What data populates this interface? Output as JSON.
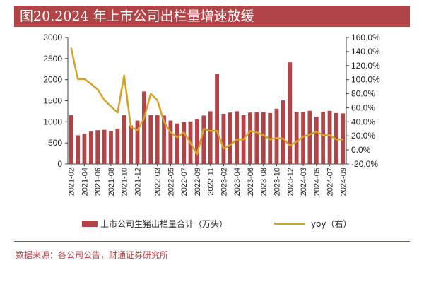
{
  "title": "图20.2024 年上市公司出栏量增速放缓",
  "source": "数据来源：各公司公告，财通证券研究所",
  "colors": {
    "bar": "#b04447",
    "line": "#d4a12a",
    "title_bg": "#b04447"
  },
  "chart_data": {
    "type": "bar",
    "categories": [
      "2021-02",
      "2021-03",
      "2021-04",
      "2021-05",
      "2021-06",
      "2021-07",
      "2021-08",
      "2021-09",
      "2021-10",
      "2021-11",
      "2021-12",
      "2022-01",
      "2022-02",
      "2022-03",
      "2022-04",
      "2022-05",
      "2022-06",
      "2022-07",
      "2022-08",
      "2022-09",
      "2022-10",
      "2022-11",
      "2022-12",
      "2023-02",
      "2023-03",
      "2023-04",
      "2023-05",
      "2023-06",
      "2023-07",
      "2023-08",
      "2023-09",
      "2023-10",
      "2023-11",
      "2023-12",
      "2024-02",
      "2024-03",
      "2024-04",
      "2024-05",
      "2024-06",
      "2024-07",
      "2024-08",
      "2024-09"
    ],
    "tick_labels": [
      "2021-02",
      "2021-04",
      "2021-06",
      "2021-08",
      "2021-10",
      "2021-12",
      "2022-03",
      "2022-05",
      "2022-07",
      "2022-09",
      "2022-11",
      "2023-02",
      "2023-04",
      "2023-06",
      "2023-08",
      "2023-10",
      "2023-12",
      "2024-03",
      "2024-05",
      "2024-07",
      "2024-09"
    ],
    "series": [
      {
        "name": "上市公司生猪出栏量合计（万头）",
        "axis": "left",
        "values": [
          1160,
          680,
          720,
          770,
          800,
          810,
          780,
          840,
          1160,
          910,
          1030,
          1720,
          1160,
          1160,
          1150,
          1030,
          960,
          990,
          1010,
          1060,
          1150,
          1250,
          2140,
          1190,
          1220,
          1250,
          1160,
          1220,
          1230,
          1230,
          1210,
          1310,
          1510,
          2410,
          1240,
          1230,
          1260,
          1120,
          1240,
          1260,
          1210,
          1200
        ]
      },
      {
        "name": "yoy（右）",
        "axis": "right",
        "type": "line",
        "values": [
          1.45,
          1.01,
          1.01,
          0.94,
          0.86,
          0.71,
          0.62,
          0.53,
          1.06,
          0.33,
          0.28,
          0.45,
          0.8,
          0.71,
          0.4,
          0.25,
          0.18,
          0.25,
          0.1,
          -0.06,
          0.3,
          0.27,
          0.27,
          0.02,
          0.07,
          0.15,
          0.15,
          0.27,
          0.25,
          0.21,
          0.15,
          0.17,
          0.16,
          0.06,
          0.12,
          0.19,
          0.22,
          0.26,
          0.21,
          0.21,
          0.15,
          0.15
        ]
      }
    ],
    "ylim_left": [
      0,
      3000
    ],
    "yticks_left": [
      0,
      500,
      1000,
      1500,
      2000,
      2500,
      3000
    ],
    "ylim_right": [
      -0.2,
      1.6
    ],
    "yticks_right_labels": [
      "-20.0%",
      "0.0%",
      "20.0%",
      "40.0%",
      "60.0%",
      "80.0%",
      "100.0%",
      "120.0%",
      "140.0%",
      "160.0%"
    ],
    "legend_position": "bottom",
    "grid": false
  }
}
